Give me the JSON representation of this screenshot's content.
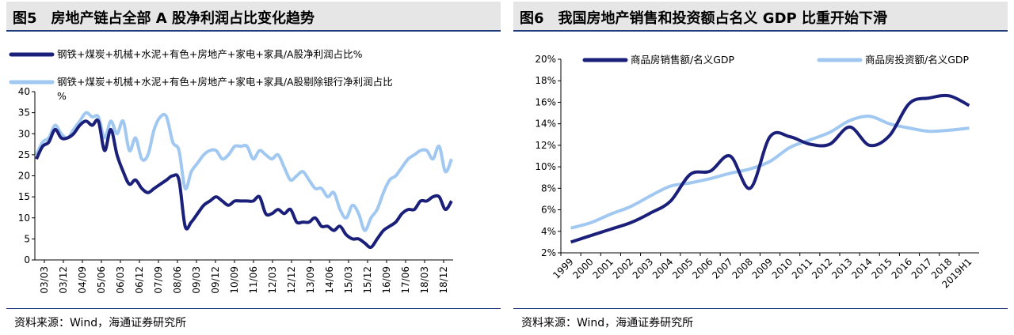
{
  "left": {
    "title": "图5　房地产链占全部 A 股净利润占比变化趋势",
    "source": "资料来源：Wind，海通证券研究所",
    "chart_data": {
      "type": "line",
      "x_tick_labels": [
        "03/03",
        "03/12",
        "04/09",
        "05/06",
        "06/03",
        "06/12",
        "07/09",
        "08/06",
        "09/03",
        "09/12",
        "10/09",
        "11/06",
        "12/03",
        "12/12",
        "13/09",
        "14/06",
        "15/03",
        "15/12",
        "16/09",
        "17/06",
        "18/03",
        "18/12"
      ],
      "ylim": [
        0,
        40
      ],
      "y_ticks": [
        0,
        5,
        10,
        15,
        20,
        25,
        30,
        35,
        40
      ],
      "grid": false,
      "legend_position": "top-left",
      "series": [
        {
          "name": "钢铁+煤炭+机械+水泥+有色+房地产+家电+家具/A股净利润占比%",
          "color": "#1a1f7a",
          "values": [
            24,
            27,
            28,
            31,
            29,
            29,
            30,
            32,
            33,
            32,
            33,
            26,
            31,
            25,
            21,
            18,
            19,
            17,
            16,
            17,
            18,
            19,
            20,
            19,
            8,
            9,
            11,
            13,
            14,
            15,
            14,
            13,
            14,
            14,
            14,
            14,
            15,
            11,
            11,
            12,
            11,
            12,
            9,
            9,
            9,
            10,
            8,
            8,
            7,
            8,
            6,
            5,
            5,
            4,
            3,
            5,
            7,
            8,
            9,
            11,
            12,
            12,
            14,
            14,
            15,
            15,
            12,
            14
          ]
        },
        {
          "name": "钢铁+煤炭+机械+水泥+有色+房地产+家电+家具/A股剔除银行净利润占比%",
          "color": "#a0c8f0",
          "values": [
            25,
            28,
            29,
            32,
            30,
            29,
            31,
            33,
            35,
            34,
            34,
            29,
            33,
            30,
            33,
            26,
            29,
            24,
            25,
            31,
            34,
            34,
            28,
            26,
            17,
            21,
            23,
            25,
            26,
            26,
            24,
            25,
            27,
            27,
            27,
            24,
            26,
            25,
            24,
            25,
            22,
            19,
            20,
            21,
            19,
            17,
            17,
            15,
            16,
            12,
            10,
            13,
            11,
            7,
            10,
            12,
            16,
            19,
            20,
            22,
            24,
            25,
            26,
            26,
            24,
            27,
            21,
            24
          ]
        }
      ]
    }
  },
  "right": {
    "title": "图6　我国房地产销售和投资额占名义 GDP 比重开始下滑",
    "source": "资料来源：Wind，海通证券研究所",
    "chart_data": {
      "type": "line",
      "categories": [
        "1999",
        "2000",
        "2001",
        "2002",
        "2003",
        "2004",
        "2005",
        "2006",
        "2007",
        "2008",
        "2009",
        "2010",
        "2011",
        "2012",
        "2013",
        "2014",
        "2015",
        "2016",
        "2017",
        "2018",
        "2019H1"
      ],
      "ylim": [
        2,
        20
      ],
      "y_ticks": [
        "2%",
        "4%",
        "6%",
        "8%",
        "10%",
        "12%",
        "14%",
        "16%",
        "18%",
        "20%"
      ],
      "grid": false,
      "legend_position": "top",
      "series": [
        {
          "name": "商品房销售额/名义GDP",
          "color": "#1a1f7a",
          "values": [
            3.0,
            3.6,
            4.2,
            4.8,
            5.7,
            6.8,
            9.3,
            9.6,
            11.0,
            8.0,
            12.8,
            12.8,
            12.1,
            12.1,
            13.7,
            12.0,
            12.9,
            15.9,
            16.4,
            16.6,
            15.7
          ]
        },
        {
          "name": "商品房投资额/名义GDP",
          "color": "#a0c8f0",
          "values": [
            4.3,
            4.8,
            5.6,
            6.3,
            7.3,
            8.2,
            8.5,
            8.9,
            9.4,
            9.8,
            10.5,
            11.8,
            12.5,
            13.2,
            14.3,
            14.7,
            14.0,
            13.6,
            13.3,
            13.4,
            13.6
          ]
        }
      ]
    }
  }
}
